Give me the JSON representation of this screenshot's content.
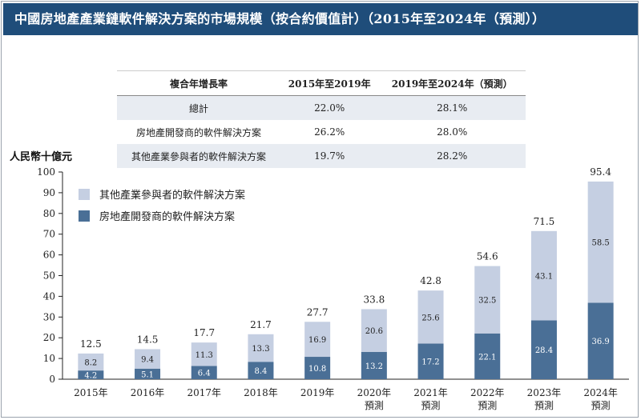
{
  "title": "中國房地產產業鏈軟件解決方案的市場規模（按合約價值計）（2015年至2024年（預測））",
  "cagr_table": {
    "header": [
      "複合年增長率",
      "2015年至2019年",
      "2019年至2024年（預測）"
    ],
    "rows": [
      {
        "label": "總計",
        "v1": "22.0%",
        "v2": "28.1%"
      },
      {
        "label": "房地產開發商的軟件解決方案",
        "v1": "26.2%",
        "v2": "28.0%"
      },
      {
        "label": "其他產業參與者的軟件解決方案",
        "v1": "19.7%",
        "v2": "28.2%"
      }
    ]
  },
  "chart_data": {
    "type": "bar",
    "stacked": true,
    "ylabel": "人民幣十億元",
    "ylim": [
      0,
      100
    ],
    "yticks": [
      0,
      10,
      20,
      30,
      40,
      50,
      60,
      70,
      80,
      90,
      100
    ],
    "categories": [
      [
        "2015年"
      ],
      [
        "2016年"
      ],
      [
        "2017年"
      ],
      [
        "2018年"
      ],
      [
        "2019年"
      ],
      [
        "2020年",
        "預測"
      ],
      [
        "2021年",
        "預測"
      ],
      [
        "2022年",
        "預測"
      ],
      [
        "2023年",
        "預測"
      ],
      [
        "2024年",
        "預測"
      ]
    ],
    "series": [
      {
        "name": "房地產開發商的軟件解決方案",
        "color": "#4a6f96",
        "values": [
          4.2,
          5.1,
          6.4,
          8.4,
          10.8,
          13.2,
          17.2,
          22.1,
          28.4,
          36.9
        ]
      },
      {
        "name": "其他產業參與者的軟件解決方案",
        "color": "#c5cfe2",
        "values": [
          8.2,
          9.4,
          11.3,
          13.3,
          16.9,
          20.6,
          25.6,
          32.5,
          43.1,
          58.5
        ]
      }
    ],
    "totals": [
      12.5,
      14.5,
      17.7,
      21.7,
      27.7,
      33.8,
      42.8,
      54.6,
      71.5,
      95.4
    ],
    "legend": [
      {
        "name": "其他產業參與者的軟件解決方案",
        "color": "#c5cfe2"
      },
      {
        "name": "房地產開發商的軟件解決方案",
        "color": "#4a6f96"
      }
    ]
  }
}
